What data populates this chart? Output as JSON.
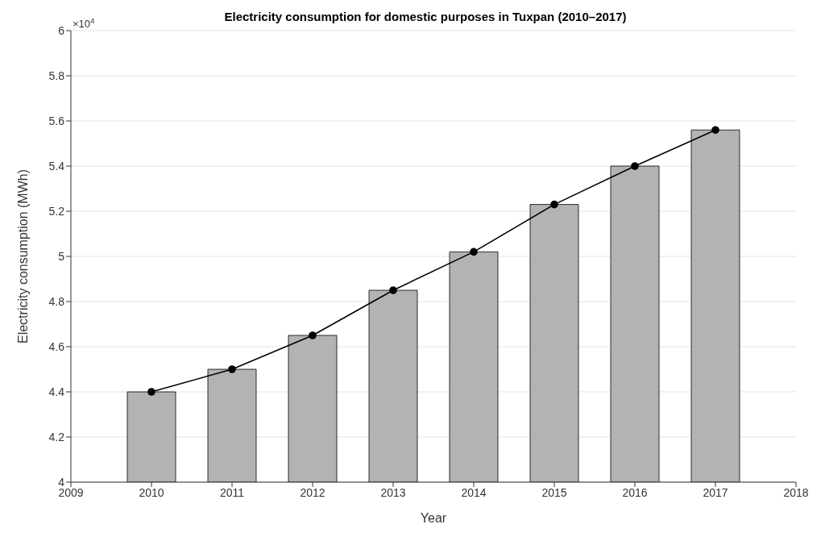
{
  "chart_data": {
    "type": "bar",
    "title": "Electricity consumption for domestic purposes in Tuxpan (2010–2017)",
    "xlabel": "Year",
    "ylabel": "Electricity consumption (MWh)",
    "annotations": [
      "×10$^{4}$"
    ],
    "x": [
      2010,
      2011,
      2012,
      2013,
      2014,
      2015,
      2016,
      2017
    ],
    "series": [
      {
        "color": "#b3b3b3",
        "values": [
          4.4,
          4.5,
          4.65,
          4.85,
          5.02,
          5.23,
          5.4,
          5.56
        ]
      },
      {
        "type": "line",
        "color": "#000000",
        "values": [
          4.4,
          4.5,
          4.65,
          4.85,
          5.02,
          5.23,
          5.4,
          5.56
        ]
      }
    ],
    "xlim": [
      2009,
      2018
    ],
    "xticks": [
      2009,
      2010,
      2011,
      2012,
      2013,
      2014,
      2015,
      2016,
      2017,
      2018
    ],
    "ylim": [
      4,
      6
    ],
    "yticks": [
      4,
      4.2,
      4.4,
      4.6,
      4.8,
      5,
      5.2,
      5.4,
      5.6,
      5.8,
      6
    ],
    "grid": "y",
    "marker": "circle"
  }
}
